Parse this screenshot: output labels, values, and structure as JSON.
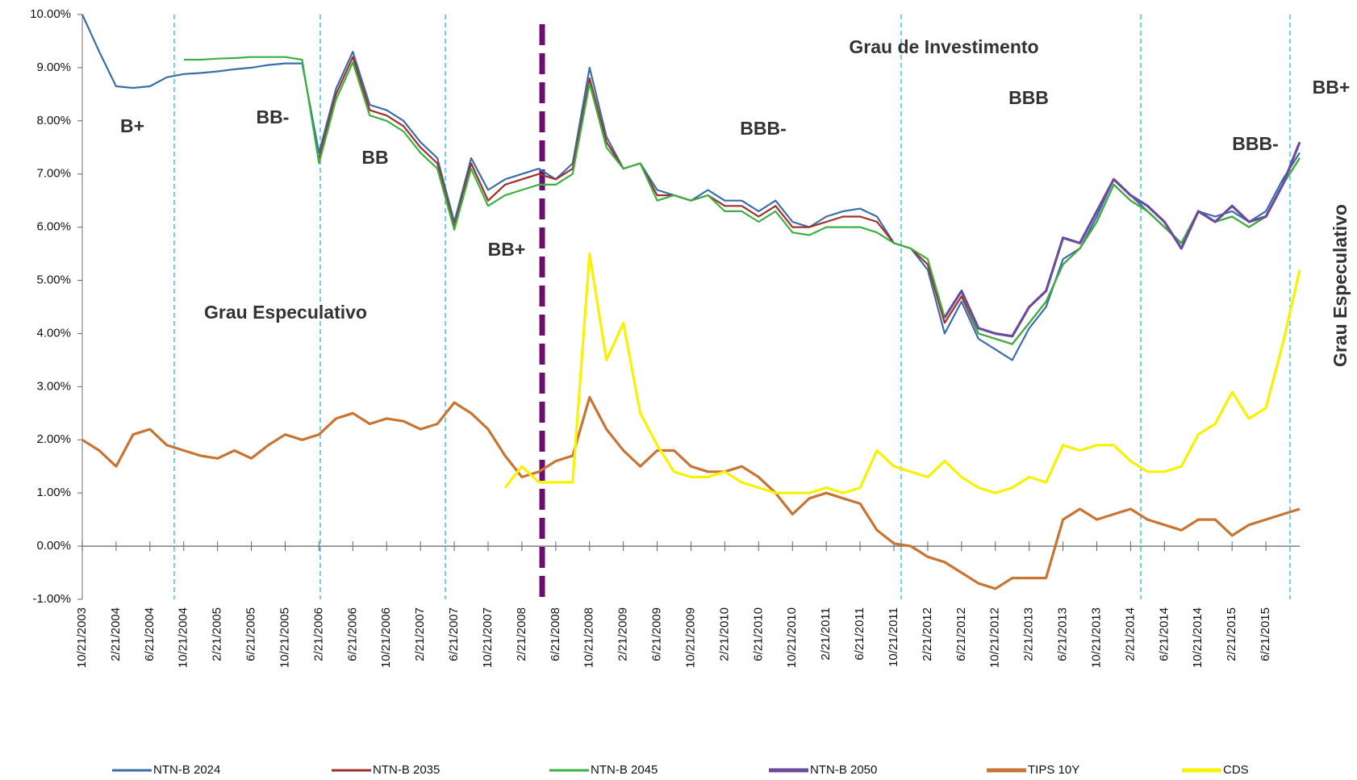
{
  "chart_data": {
    "type": "line",
    "x": [
      "10/21/2003",
      "12/21/2003",
      "2/21/2004",
      "4/21/2004",
      "6/21/2004",
      "8/21/2004",
      "10/21/2004",
      "12/21/2004",
      "2/21/2005",
      "4/21/2005",
      "6/21/2005",
      "8/21/2005",
      "10/21/2005",
      "12/21/2005",
      "2/21/2006",
      "4/21/2006",
      "6/21/2006",
      "8/21/2006",
      "10/21/2006",
      "12/21/2006",
      "2/21/2007",
      "4/21/2007",
      "6/21/2007",
      "8/21/2007",
      "10/21/2007",
      "12/21/2007",
      "2/21/2008",
      "4/21/2008",
      "6/21/2008",
      "8/21/2008",
      "10/21/2008",
      "12/21/2008",
      "2/21/2009",
      "4/21/2009",
      "6/21/2009",
      "8/21/2009",
      "10/21/2009",
      "12/21/2009",
      "2/21/2010",
      "4/21/2010",
      "6/21/2010",
      "8/21/2010",
      "10/21/2010",
      "12/21/2010",
      "2/21/2011",
      "4/21/2011",
      "6/21/2011",
      "8/21/2011",
      "10/21/2011",
      "12/21/2011",
      "2/21/2012",
      "4/21/2012",
      "6/21/2012",
      "8/21/2012",
      "10/21/2012",
      "12/21/2012",
      "2/21/2013",
      "4/21/2013",
      "6/21/2013",
      "8/21/2013",
      "10/21/2013",
      "12/21/2013",
      "2/21/2014",
      "4/21/2014",
      "6/21/2014",
      "8/21/2014",
      "10/21/2014",
      "12/21/2014",
      "2/21/2015",
      "4/21/2015",
      "6/21/2015",
      "8/21/2015",
      "10/21/2015"
    ],
    "xlim": [
      "10/21/2003",
      "10/21/2015"
    ],
    "xticks": [
      "10/21/2003",
      "2/21/2004",
      "6/21/2004",
      "10/21/2004",
      "2/21/2005",
      "6/21/2005",
      "10/21/2005",
      "2/21/2006",
      "6/21/2006",
      "10/21/2006",
      "2/21/2007",
      "6/21/2007",
      "10/21/2007",
      "2/21/2008",
      "6/21/2008",
      "10/21/2008",
      "2/21/2009",
      "6/21/2009",
      "10/21/2009",
      "2/21/2010",
      "6/21/2010",
      "10/21/2010",
      "2/21/2011",
      "6/21/2011",
      "10/21/2011",
      "2/21/2012",
      "6/21/2012",
      "10/21/2012",
      "2/21/2013",
      "6/21/2013",
      "10/21/2013",
      "2/21/2014",
      "6/21/2014",
      "10/21/2014",
      "2/21/2015",
      "6/21/2015"
    ],
    "ylim": [
      -1,
      10
    ],
    "yticks": [
      {
        "value": -1,
        "label": "-1.00%"
      },
      {
        "value": 0,
        "label": "0.00%"
      },
      {
        "value": 1,
        "label": "1.00%"
      },
      {
        "value": 2,
        "label": "2.00%"
      },
      {
        "value": 3,
        "label": "3.00%"
      },
      {
        "value": 4,
        "label": "4.00%"
      },
      {
        "value": 5,
        "label": "5.00%"
      },
      {
        "value": 6,
        "label": "6.00%"
      },
      {
        "value": 7,
        "label": "7.00%"
      },
      {
        "value": 8,
        "label": "8.00%"
      },
      {
        "value": 9,
        "label": "9.00%"
      },
      {
        "value": 10,
        "label": "10.00%"
      }
    ],
    "grid": false,
    "series": [
      {
        "name": "NTN-B 2024",
        "color": "#3a6ea8",
        "values": [
          10.0,
          9.3,
          8.65,
          8.62,
          8.65,
          8.82,
          8.88,
          8.9,
          8.93,
          8.97,
          9.0,
          9.05,
          9.08,
          9.08,
          7.4,
          8.6,
          9.3,
          8.3,
          8.2,
          8.0,
          7.6,
          7.3,
          6.1,
          7.3,
          6.7,
          6.9,
          7.0,
          7.1,
          6.9,
          7.2,
          9.0,
          7.7,
          7.1,
          7.2,
          6.7,
          6.6,
          6.5,
          6.7,
          6.5,
          6.5,
          6.3,
          6.5,
          6.1,
          6.0,
          6.2,
          6.3,
          6.35,
          6.2,
          5.7,
          5.6,
          5.2,
          4.0,
          4.6,
          3.9,
          3.7,
          3.5,
          4.1,
          4.5,
          5.4,
          5.6,
          6.2,
          6.9,
          6.6,
          6.3,
          6.0,
          5.7,
          6.3,
          6.2,
          6.3,
          6.1,
          6.3,
          6.9,
          7.4
        ]
      },
      {
        "name": "NTN-B 2035",
        "color": "#a0302c",
        "values": [
          null,
          null,
          null,
          null,
          null,
          null,
          null,
          null,
          null,
          null,
          null,
          null,
          null,
          null,
          7.3,
          8.5,
          9.2,
          8.2,
          8.1,
          7.9,
          7.5,
          7.2,
          6.0,
          7.2,
          6.5,
          6.8,
          6.9,
          7.0,
          6.9,
          7.1,
          8.8,
          7.6,
          7.1,
          7.2,
          6.6,
          6.6,
          6.5,
          6.6,
          6.4,
          6.4,
          6.2,
          6.4,
          6.0,
          6.0,
          6.1,
          6.2,
          6.2,
          6.1,
          5.7,
          5.6,
          5.3,
          4.2,
          4.7,
          4.0,
          3.9,
          3.8,
          4.2,
          4.6,
          5.3,
          5.6,
          6.1,
          6.8,
          6.5,
          6.3,
          6.0,
          5.7,
          6.3,
          6.1,
          6.2,
          6.0,
          6.2,
          6.8,
          7.3
        ]
      },
      {
        "name": "NTN-B 2045",
        "color": "#3cb043",
        "values": [
          null,
          null,
          null,
          null,
          null,
          null,
          9.15,
          9.15,
          9.17,
          9.18,
          9.2,
          9.2,
          9.2,
          9.15,
          7.2,
          8.4,
          9.1,
          8.1,
          8.0,
          7.8,
          7.4,
          7.1,
          5.95,
          7.1,
          6.4,
          6.6,
          6.7,
          6.8,
          6.8,
          7.0,
          8.7,
          7.5,
          7.1,
          7.2,
          6.5,
          6.6,
          6.5,
          6.6,
          6.3,
          6.3,
          6.1,
          6.3,
          5.9,
          5.85,
          6.0,
          6.0,
          6.0,
          5.9,
          5.7,
          5.6,
          5.4,
          4.3,
          4.8,
          4.0,
          3.9,
          3.8,
          4.2,
          4.6,
          5.3,
          5.6,
          6.1,
          6.8,
          6.5,
          6.3,
          6.0,
          5.7,
          6.3,
          6.1,
          6.2,
          6.0,
          6.2,
          6.8,
          7.3
        ]
      },
      {
        "name": "NTN-B 2050",
        "color": "#6a4c9c",
        "values": [
          null,
          null,
          null,
          null,
          null,
          null,
          null,
          null,
          null,
          null,
          null,
          null,
          null,
          null,
          null,
          null,
          null,
          null,
          null,
          null,
          null,
          null,
          null,
          null,
          null,
          null,
          null,
          null,
          null,
          null,
          null,
          null,
          null,
          null,
          null,
          null,
          null,
          null,
          null,
          null,
          null,
          null,
          null,
          null,
          null,
          null,
          null,
          null,
          null,
          null,
          null,
          4.3,
          4.8,
          4.1,
          4.0,
          3.95,
          4.5,
          4.8,
          5.8,
          5.7,
          6.3,
          6.9,
          6.6,
          6.4,
          6.1,
          5.6,
          6.3,
          6.1,
          6.4,
          6.1,
          6.2,
          6.8,
          7.6
        ]
      },
      {
        "name": "TIPS 10Y",
        "color": "#c87533",
        "values": [
          2.0,
          1.8,
          1.5,
          2.1,
          2.2,
          1.9,
          1.8,
          1.7,
          1.65,
          1.8,
          1.65,
          1.9,
          2.1,
          2.0,
          2.1,
          2.4,
          2.5,
          2.3,
          2.4,
          2.35,
          2.2,
          2.3,
          2.7,
          2.5,
          2.2,
          1.7,
          1.3,
          1.4,
          1.6,
          1.7,
          2.8,
          2.2,
          1.8,
          1.5,
          1.8,
          1.8,
          1.5,
          1.4,
          1.4,
          1.5,
          1.3,
          1.0,
          0.6,
          0.9,
          1.0,
          0.9,
          0.8,
          0.3,
          0.05,
          0.0,
          -0.2,
          -0.3,
          -0.5,
          -0.7,
          -0.8,
          -0.6,
          -0.6,
          -0.6,
          0.5,
          0.7,
          0.5,
          0.6,
          0.7,
          0.5,
          0.4,
          0.3,
          0.5,
          0.5,
          0.2,
          0.4,
          0.5,
          0.6,
          0.7
        ]
      },
      {
        "name": "CDS",
        "color": "#f7f300",
        "values": [
          null,
          null,
          null,
          null,
          null,
          null,
          null,
          null,
          null,
          null,
          null,
          null,
          null,
          null,
          null,
          null,
          null,
          null,
          null,
          null,
          null,
          null,
          null,
          null,
          null,
          1.1,
          1.5,
          1.2,
          1.2,
          1.2,
          5.5,
          3.5,
          4.2,
          2.5,
          1.9,
          1.4,
          1.3,
          1.3,
          1.4,
          1.2,
          1.1,
          1.0,
          1.0,
          1.0,
          1.1,
          1.0,
          1.1,
          1.8,
          1.5,
          1.4,
          1.3,
          1.6,
          1.3,
          1.1,
          1.0,
          1.1,
          1.3,
          1.2,
          1.9,
          1.8,
          1.9,
          1.9,
          1.6,
          1.4,
          1.4,
          1.5,
          2.1,
          2.3,
          2.9,
          2.4,
          2.6,
          3.8,
          5.2
        ]
      }
    ],
    "annotations": [
      "B+",
      "BB-",
      "BB",
      "BB+",
      "BBB-",
      "Grau de Investimento",
      "BBB",
      "BBB-",
      "BB+",
      "Grau Especulativo",
      "Grau Especulativo"
    ]
  }
}
